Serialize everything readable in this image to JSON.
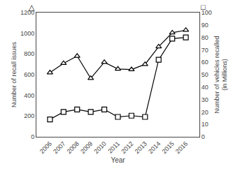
{
  "chart_data": {
    "type": "line",
    "x": [
      2006,
      2007,
      2008,
      2009,
      2010,
      2011,
      2012,
      2013,
      2014,
      2015,
      2016
    ],
    "xlim": [
      2005,
      2017
    ],
    "xticks": [
      2006,
      2007,
      2008,
      2009,
      2010,
      2011,
      2012,
      2013,
      2014,
      2015,
      2016
    ],
    "xlabel": "Year",
    "ylabel": "Number of recall issues",
    "y2label": "Number of vehicles recalled\n(in Millions)",
    "ylim": [
      0,
      1200
    ],
    "yticks": [
      0,
      200,
      400,
      600,
      800,
      1000,
      1200
    ],
    "y2lim": [
      0,
      100
    ],
    "y2ticks": [
      0,
      10,
      20,
      30,
      40,
      50,
      60,
      70,
      80,
      90,
      100
    ],
    "grid": false,
    "annotations": [
      "△",
      "□"
    ],
    "series": [
      {
        "color": "#000000",
        "marker": "triangle",
        "values": [
          620,
          710,
          780,
          565,
          720,
          655,
          650,
          700,
          870,
          1005,
          1030
        ]
      },
      {
        "color": "#000000",
        "marker": "square",
        "axis": "y2",
        "values": [
          14,
          20,
          22,
          20,
          22,
          16,
          17,
          16,
          62,
          79,
          80
        ]
      }
    ]
  }
}
